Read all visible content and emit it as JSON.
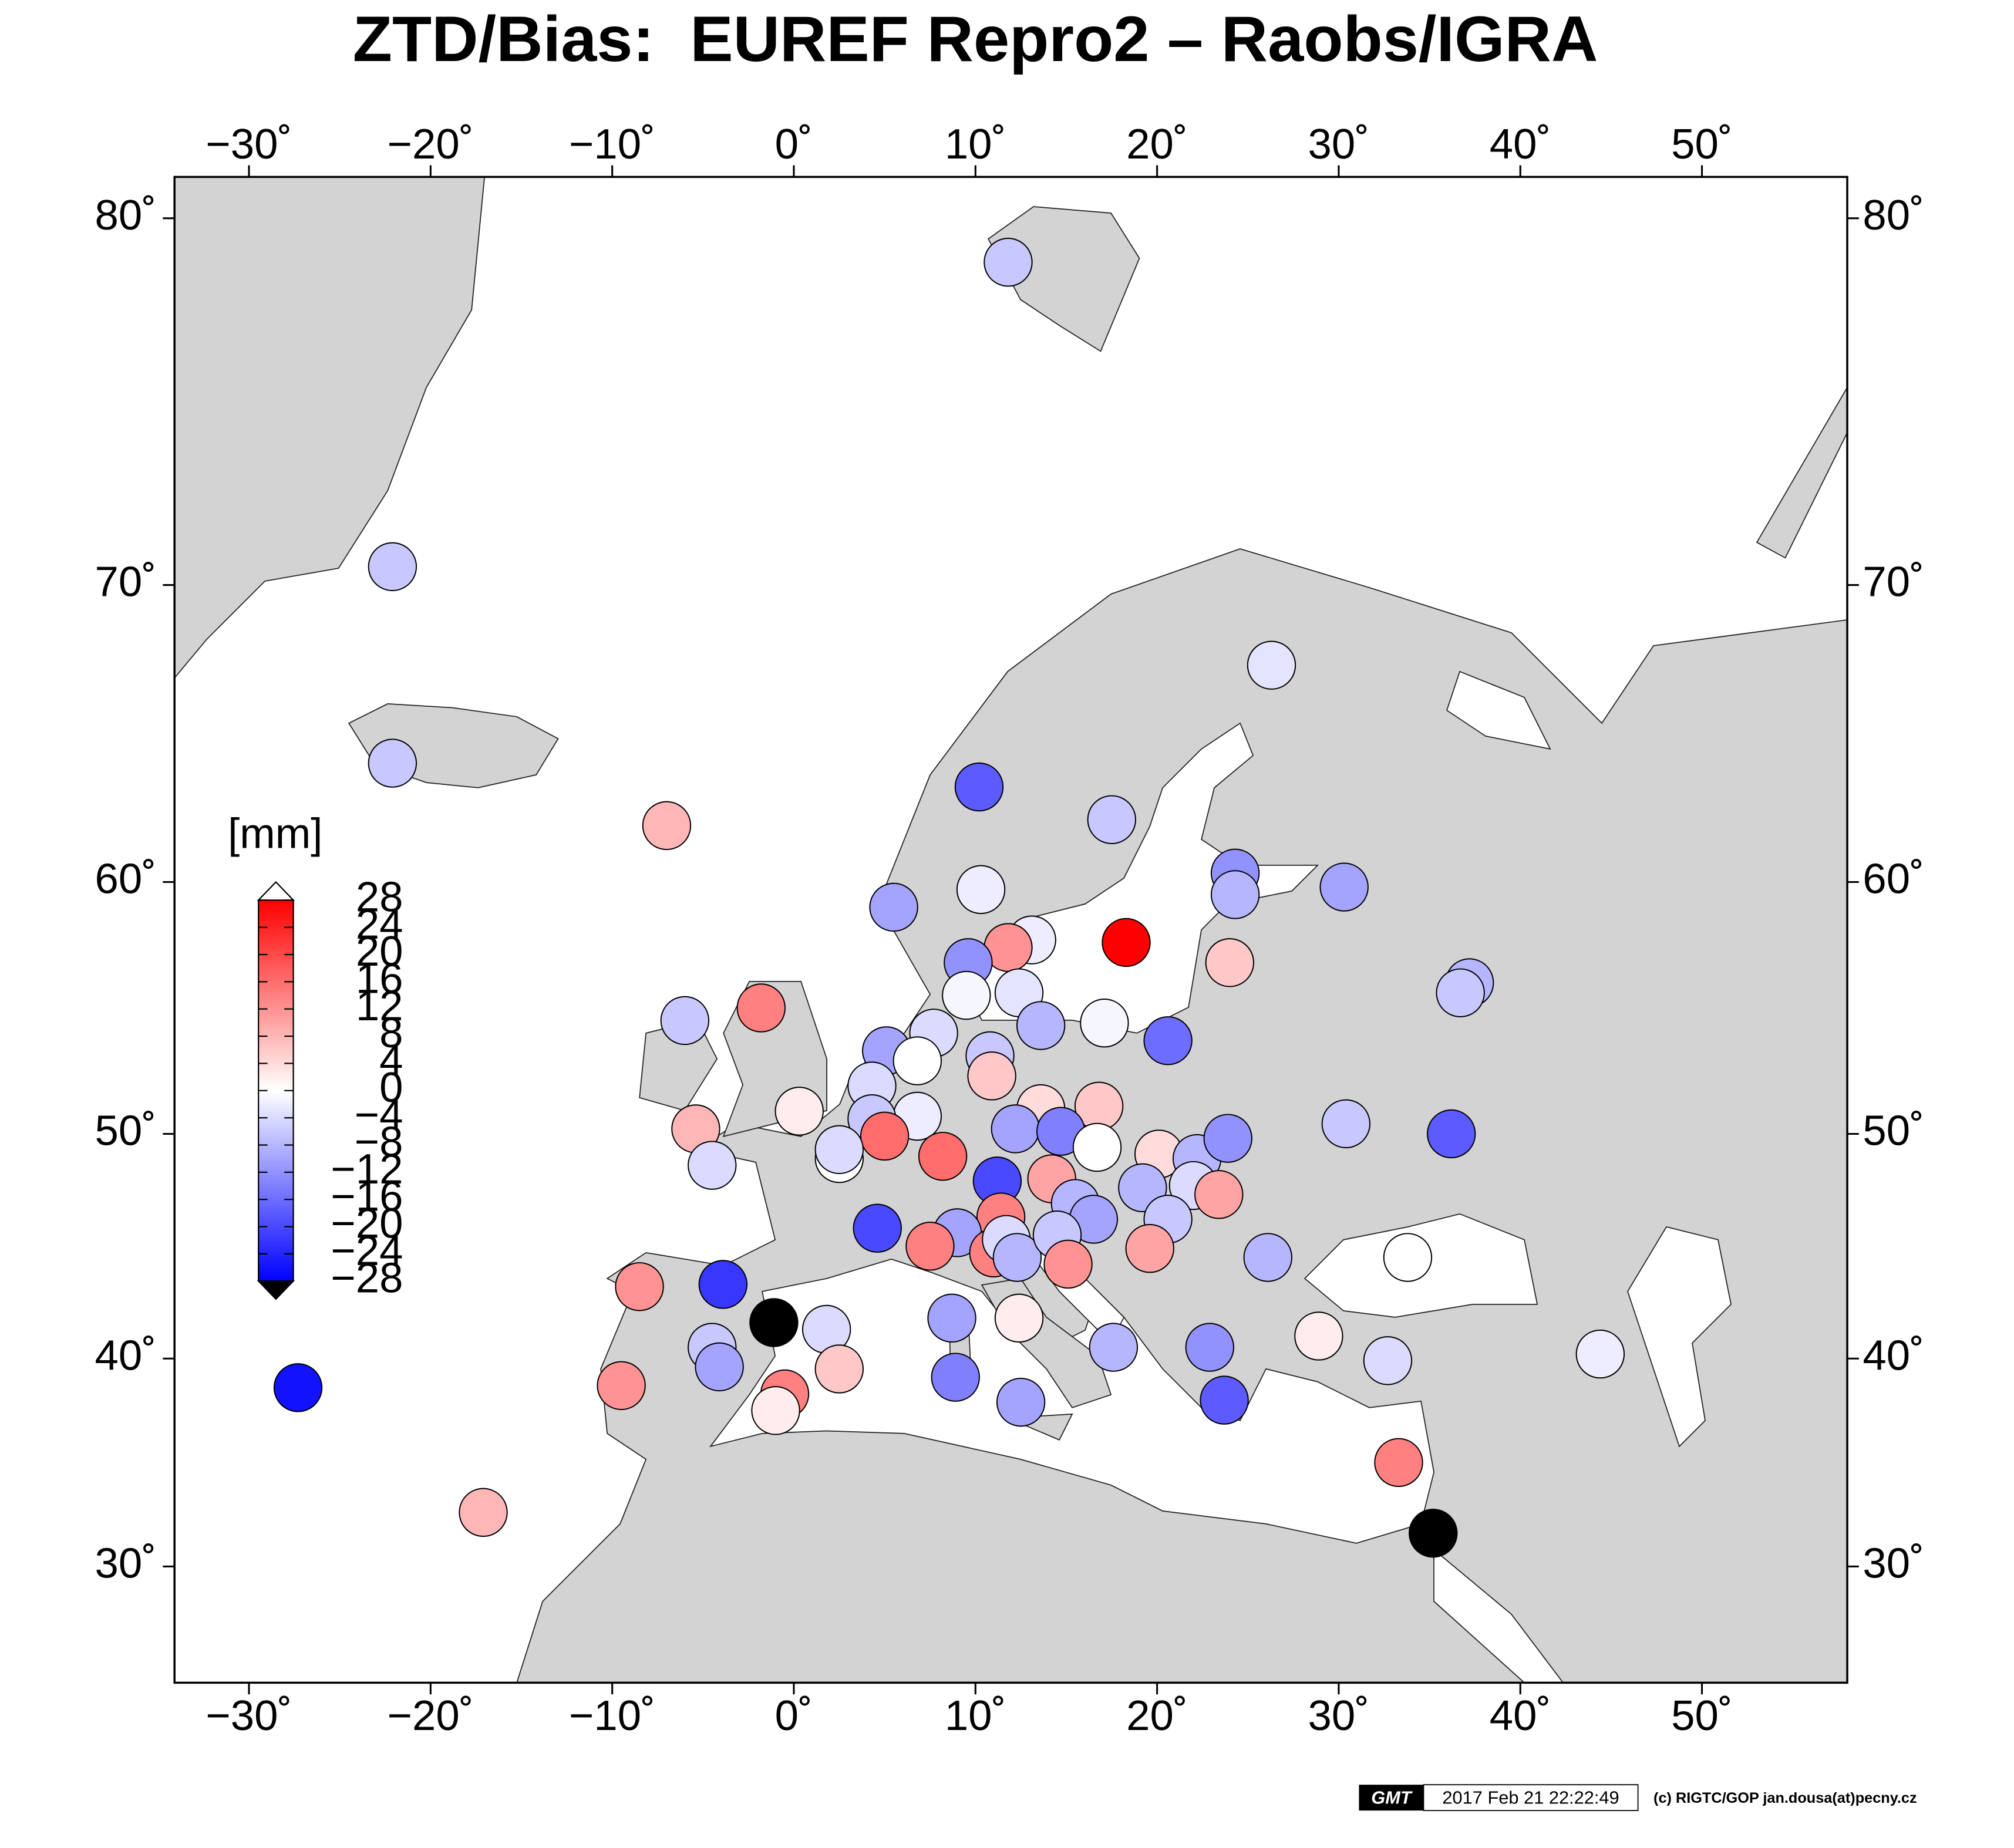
{
  "chart_data": {
    "type": "scatter",
    "title": "ZTD/Bias:  EUREF Repro2 – Raobs/IGRA",
    "x": [
      11.8,
      -22.1,
      -22.1,
      -7.0,
      -27.3,
      -17.1,
      26.3,
      10.2,
      17.5,
      24.3,
      24.3,
      30.3,
      10.3,
      5.5,
      18.3,
      24.0,
      37.2,
      36.7,
      13.1,
      11.8,
      9.6,
      9.5,
      12.4,
      -1.8,
      -6.0,
      13.6,
      17.1,
      20.6,
      7.7,
      5.1,
      6.8,
      10.8,
      10.9,
      4.3,
      0.3,
      13.6,
      16.8,
      6.8,
      4.3,
      30.4,
      36.2,
      -5.4,
      5.0,
      2.5,
      2.5,
      12.2,
      14.7,
      16.7,
      20.1,
      22.2,
      23.9,
      8.2,
      -4.5,
      11.2,
      14.2,
      19.2,
      22.0,
      23.4,
      11.4,
      9.0,
      4.6,
      15.5,
      16.5,
      20.6,
      7.5,
      11.0,
      11.7,
      12.3,
      14.5,
      15.1,
      19.6,
      26.1,
      33.8,
      -8.5,
      -3.9,
      -1.1,
      1.8,
      8.7,
      12.4,
      17.6,
      22.9,
      28.9,
      32.7,
      44.4,
      -4.5,
      -4.1,
      -9.5,
      2.5,
      -0.5,
      -1.0,
      8.9,
      12.5,
      23.7,
      33.3,
      35.2
    ],
    "y": [
      78.8,
      70.5,
      64.0,
      61.9,
      38.6,
      32.6,
      67.3,
      63.2,
      62.1,
      60.3,
      59.5,
      59.8,
      59.7,
      59.0,
      57.6,
      56.8,
      56.0,
      55.6,
      57.7,
      57.4,
      56.8,
      55.5,
      55.6,
      55.0,
      54.5,
      54.3,
      54.4,
      53.7,
      54.0,
      53.3,
      52.9,
      53.1,
      52.3,
      51.9,
      50.9,
      51.0,
      51.1,
      50.7,
      50.6,
      50.4,
      50.0,
      50.2,
      49.9,
      48.9,
      49.3,
      50.2,
      50.1,
      49.4,
      49.1,
      48.9,
      49.8,
      49.0,
      48.6,
      47.9,
      48.0,
      47.6,
      47.7,
      47.3,
      46.3,
      45.6,
      45.8,
      46.9,
      46.2,
      46.2,
      45.0,
      44.7,
      45.3,
      44.5,
      45.5,
      44.2,
      44.9,
      44.5,
      44.5,
      43.2,
      43.3,
      41.6,
      41.3,
      41.8,
      41.8,
      40.5,
      40.5,
      41.0,
      39.9,
      40.2,
      40.5,
      39.6,
      38.7,
      39.5,
      38.3,
      37.5,
      39.1,
      37.9,
      38.0,
      35.0,
      31.6
    ],
    "values": [
      -6,
      -6,
      -6,
      8,
      -26,
      8,
      -3,
      -18,
      -6,
      -12,
      -8,
      -10,
      -2,
      -10,
      28,
      6,
      -8,
      -6,
      -2,
      12,
      -12,
      -1,
      -3,
      14,
      -6,
      -8,
      -1,
      -16,
      -4,
      -10,
      0,
      -6,
      6,
      -4,
      2,
      4,
      6,
      -2,
      -6,
      -6,
      -18,
      8,
      16,
      0,
      -4,
      -10,
      -14,
      0,
      4,
      -8,
      -12,
      16,
      -4,
      -20,
      10,
      -8,
      -4,
      10,
      14,
      -10,
      -20,
      -8,
      -10,
      -6,
      14,
      14,
      -4,
      -8,
      -6,
      12,
      10,
      -8,
      0,
      12,
      -22,
      -32,
      -4,
      -10,
      2,
      -8,
      -12,
      2,
      -4,
      -2,
      -6,
      -10,
      12,
      6,
      14,
      2,
      -14,
      -10,
      -18,
      14,
      -32
    ],
    "xlim": [
      -34.1,
      58
    ],
    "ylim": [
      24.4,
      81.1
    ],
    "xticks": [
      {
        "value": -30,
        "label": "−30˚"
      },
      {
        "value": -20,
        "label": "−20˚"
      },
      {
        "value": -10,
        "label": "−10˚"
      },
      {
        "value": 0,
        "label": "0˚"
      },
      {
        "value": 10,
        "label": "10˚"
      },
      {
        "value": 20,
        "label": "20˚"
      },
      {
        "value": 30,
        "label": "30˚"
      },
      {
        "value": 40,
        "label": "40˚"
      },
      {
        "value": 50,
        "label": "50˚"
      }
    ],
    "yticks": [
      {
        "value": 30,
        "label": "30˚"
      },
      {
        "value": 40,
        "label": "40˚"
      },
      {
        "value": 50,
        "label": "50˚"
      },
      {
        "value": 60,
        "label": "60˚"
      },
      {
        "value": 70,
        "label": "70˚"
      },
      {
        "value": 80,
        "label": "80˚"
      }
    ],
    "colorbar": {
      "label": "[mm]",
      "clim": [
        -28,
        28
      ],
      "colors": [
        "#0000ff",
        "#ffffff",
        "#ff0000"
      ],
      "under_color": "#000000",
      "over_color": "#ffffff",
      "ticks": [
        28,
        24,
        20,
        16,
        12,
        8,
        4,
        0,
        {
          "value": -4,
          "label": "−4"
        },
        {
          "value": -8,
          "label": "−8"
        },
        {
          "value": -12,
          "label": "−12"
        },
        {
          "value": -16,
          "label": "−16"
        },
        {
          "value": -20,
          "label": "−20"
        },
        {
          "value": -24,
          "label": "−24"
        },
        {
          "value": -28,
          "label": "−28"
        }
      ]
    }
  },
  "footer": {
    "logo": "GMT",
    "timestamp": "2017 Feb 21 22:22:49",
    "credit": "(c) RIGTC/GOP jan.dousa(at)pecny.cz"
  }
}
